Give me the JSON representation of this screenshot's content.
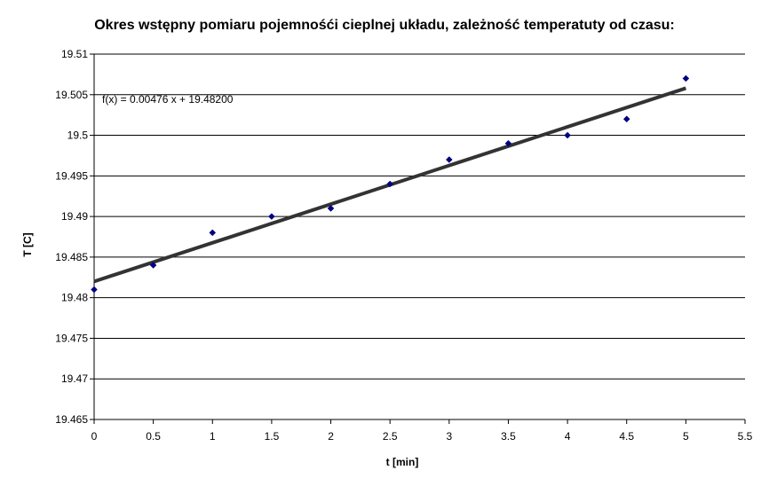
{
  "chart_data": {
    "type": "scatter",
    "title": "Okres wstępny pomiaru pojemnośći cieplnej układu, zależność temperatuty od czasu:",
    "xlabel": "t [min]",
    "ylabel": "T [C]",
    "xlim": [
      0,
      5.5
    ],
    "ylim": [
      19.465,
      19.51
    ],
    "x_ticks": [
      "0",
      "0.5",
      "1",
      "1.5",
      "2",
      "2.5",
      "3",
      "3.5",
      "4",
      "4.5",
      "5",
      "5.5"
    ],
    "y_ticks": [
      "19.465",
      "19.47",
      "19.475",
      "19.48",
      "19.485",
      "19.49",
      "19.495",
      "19.5",
      "19.505",
      "19.51"
    ],
    "grid": "horizontal",
    "series": [
      {
        "x": [
          0,
          0.5,
          1,
          1.5,
          2,
          2.5,
          3,
          3.5,
          4,
          4.5,
          5
        ],
        "y": [
          19.481,
          19.484,
          19.488,
          19.49,
          19.491,
          19.494,
          19.497,
          19.499,
          19.5,
          19.502,
          19.507
        ],
        "color": "#000080"
      }
    ],
    "trendline": {
      "equation": "f(x) = 0.00476 x + 19.48200",
      "slope": 0.00476,
      "intercept": 19.482,
      "x_range": [
        0,
        5
      ],
      "color": "#333333"
    }
  }
}
